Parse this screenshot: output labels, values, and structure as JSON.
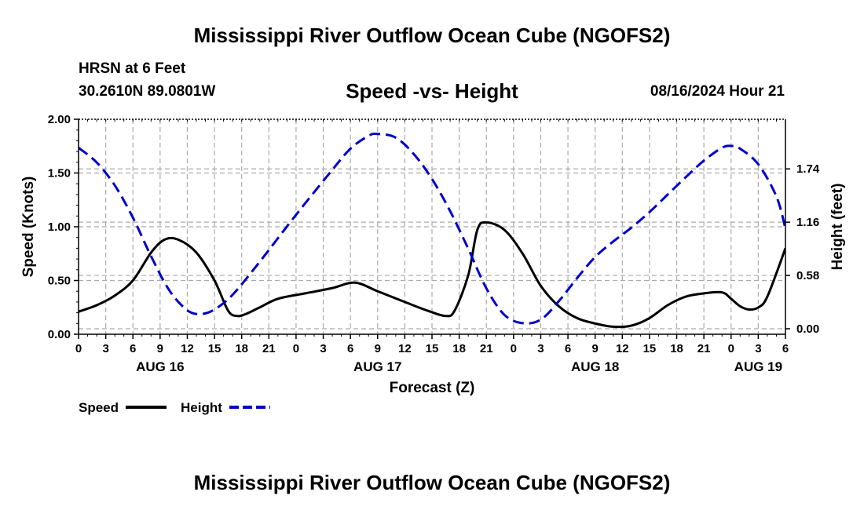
{
  "header": {
    "title": "Mississippi River Outflow Ocean Cube (NGOFS2)",
    "station": "HRSN at 6 Feet",
    "coords": "30.2610N  89.0801W",
    "subtitle": "Speed -vs- Height",
    "datetime": "08/16/2024 Hour 21"
  },
  "footer": {
    "title": "Mississippi River Outflow Ocean Cube (NGOFS2)"
  },
  "chart_data": {
    "type": "line",
    "xlabel": "Forecast (Z)",
    "ylabel_left": "Speed (Knots)",
    "ylabel_right": "Height (feet)",
    "x_unit": "hours since AUG 16 00Z",
    "xlim": [
      0,
      78
    ],
    "ylim_left": [
      0,
      2.0
    ],
    "ylim_right": [
      -0.06,
      2.28
    ],
    "x_tick_hours": [
      0,
      3,
      6,
      9,
      12,
      15,
      18,
      21,
      24,
      27,
      30,
      33,
      36,
      39,
      42,
      45,
      48,
      51,
      54,
      57,
      60,
      63,
      66,
      69,
      72,
      75,
      78
    ],
    "x_tick_labels": [
      "0",
      "3",
      "6",
      "9",
      "12",
      "15",
      "18",
      "21",
      "0",
      "3",
      "6",
      "9",
      "12",
      "15",
      "18",
      "21",
      "0",
      "3",
      "6",
      "9",
      "12",
      "15",
      "18",
      "21",
      "0",
      "3",
      "6"
    ],
    "day_labels": [
      {
        "hour": 9,
        "label": "AUG 16"
      },
      {
        "hour": 33,
        "label": "AUG 17"
      },
      {
        "hour": 57,
        "label": "AUG 18"
      },
      {
        "hour": 75,
        "label": "AUG 19"
      }
    ],
    "left_ticks": [
      {
        "value": 0.0,
        "label": "0.00"
      },
      {
        "value": 0.5,
        "label": "0.50"
      },
      {
        "value": 1.0,
        "label": "1.00"
      },
      {
        "value": 1.5,
        "label": "1.50"
      },
      {
        "value": 2.0,
        "label": "2.00"
      }
    ],
    "right_ticks": [
      {
        "value": 0.0,
        "label": "0.00"
      },
      {
        "value": 0.58,
        "label": "0.58"
      },
      {
        "value": 1.16,
        "label": "1.16"
      },
      {
        "value": 1.74,
        "label": "1.74"
      }
    ],
    "legend": [
      {
        "name": "Speed",
        "color": "#000000",
        "style": "solid"
      },
      {
        "name": "Height",
        "color": "#0000cc",
        "style": "dashed"
      }
    ],
    "series": [
      {
        "name": "Speed",
        "axis": "left",
        "color": "#000000",
        "style": "solid",
        "x": [
          0,
          2,
          4,
          6,
          8,
          9.5,
          11,
          13,
          15,
          16.5,
          17.5,
          18.5,
          20,
          22,
          25,
          28,
          30.5,
          33,
          36,
          38.5,
          40.5,
          41.5,
          43,
          44,
          45,
          47,
          49,
          51,
          53,
          55,
          57,
          59,
          61,
          63,
          65,
          67,
          69,
          71,
          72,
          73,
          74,
          75,
          76,
          78
        ],
        "y": [
          0.21,
          0.27,
          0.36,
          0.5,
          0.76,
          0.88,
          0.88,
          0.76,
          0.5,
          0.22,
          0.17,
          0.19,
          0.25,
          0.33,
          0.38,
          0.43,
          0.48,
          0.4,
          0.3,
          0.22,
          0.17,
          0.22,
          0.55,
          0.97,
          1.04,
          0.97,
          0.75,
          0.45,
          0.26,
          0.15,
          0.1,
          0.07,
          0.08,
          0.15,
          0.27,
          0.35,
          0.38,
          0.39,
          0.33,
          0.26,
          0.23,
          0.25,
          0.35,
          0.8
        ]
      },
      {
        "name": "Height",
        "axis": "right",
        "color": "#0000cc",
        "style": "dashed",
        "x": [
          0,
          2,
          4,
          6,
          8,
          10,
          12,
          13.5,
          15,
          17,
          20,
          24,
          28,
          30,
          32,
          33,
          35,
          37,
          39,
          41,
          43,
          45,
          47,
          49,
          51,
          53,
          55,
          57,
          59,
          61,
          63,
          65,
          67,
          69,
          71,
          72,
          73,
          75,
          77,
          78
        ],
        "y": [
          1.97,
          1.81,
          1.56,
          1.21,
          0.79,
          0.42,
          0.2,
          0.16,
          0.21,
          0.37,
          0.73,
          1.24,
          1.73,
          1.96,
          2.1,
          2.12,
          2.08,
          1.9,
          1.63,
          1.28,
          0.87,
          0.44,
          0.15,
          0.06,
          0.1,
          0.3,
          0.55,
          0.78,
          0.95,
          1.1,
          1.27,
          1.46,
          1.65,
          1.83,
          1.97,
          1.99,
          1.96,
          1.79,
          1.44,
          1.09
        ]
      }
    ]
  }
}
